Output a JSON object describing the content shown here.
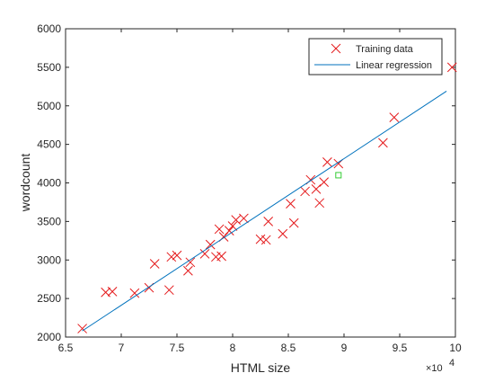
{
  "chart_data": {
    "type": "scatter",
    "title": "",
    "xlabel": "HTML size",
    "ylabel": "wordcount",
    "x_exponent_label": "×10",
    "x_exponent_power": "4",
    "xlim": [
      6.5,
      10
    ],
    "ylim": [
      2000,
      6000
    ],
    "x_ticks": [
      "6.5",
      "7",
      "7.5",
      "8",
      "8.5",
      "9",
      "9.5",
      "10"
    ],
    "y_ticks": [
      "2000",
      "2500",
      "3000",
      "3500",
      "4000",
      "4500",
      "5000",
      "5500",
      "6000"
    ],
    "grid": false,
    "legend_position": "top-right",
    "series": [
      {
        "name": "Training data",
        "kind": "marker-x",
        "color": "#e41a1c",
        "points": [
          [
            6.65,
            2110
          ],
          [
            6.86,
            2580
          ],
          [
            6.92,
            2590
          ],
          [
            7.12,
            2570
          ],
          [
            7.25,
            2640
          ],
          [
            7.3,
            2950
          ],
          [
            7.43,
            2610
          ],
          [
            7.45,
            3040
          ],
          [
            7.5,
            3060
          ],
          [
            7.6,
            2860
          ],
          [
            7.62,
            2970
          ],
          [
            7.75,
            3080
          ],
          [
            7.8,
            3200
          ],
          [
            7.85,
            3040
          ],
          [
            7.88,
            3400
          ],
          [
            7.9,
            3050
          ],
          [
            7.92,
            3300
          ],
          [
            7.97,
            3380
          ],
          [
            8.0,
            3440
          ],
          [
            8.03,
            3520
          ],
          [
            8.1,
            3540
          ],
          [
            8.25,
            3270
          ],
          [
            8.3,
            3260
          ],
          [
            8.32,
            3500
          ],
          [
            8.45,
            3340
          ],
          [
            8.52,
            3730
          ],
          [
            8.55,
            3480
          ],
          [
            8.65,
            3890
          ],
          [
            8.7,
            4040
          ],
          [
            8.75,
            3920
          ],
          [
            8.78,
            3740
          ],
          [
            8.82,
            4010
          ],
          [
            8.85,
            4270
          ],
          [
            8.95,
            4250
          ],
          [
            9.35,
            4520
          ],
          [
            9.45,
            4850
          ],
          [
            9.97,
            5500
          ]
        ]
      },
      {
        "name": "Linear regression",
        "kind": "line",
        "color": "#0072bd",
        "points": [
          [
            6.65,
            2080
          ],
          [
            9.92,
            5190
          ]
        ]
      },
      {
        "name": "",
        "kind": "marker-square",
        "color": "#33cc33",
        "points": [
          [
            8.95,
            4100
          ]
        ]
      }
    ]
  }
}
